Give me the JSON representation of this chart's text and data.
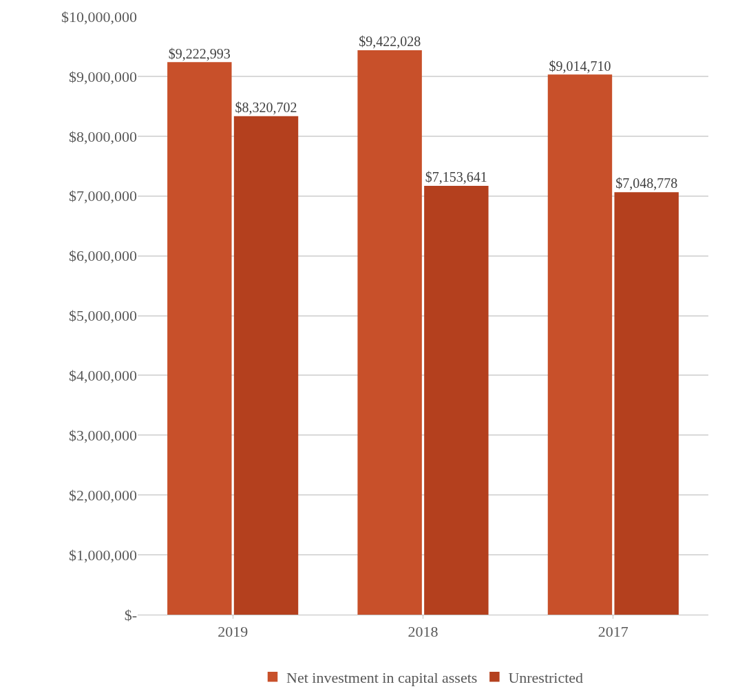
{
  "chart_data": {
    "type": "bar",
    "categories": [
      "2019",
      "2018",
      "2017"
    ],
    "series": [
      {
        "name": "Net investment in capital assets",
        "color": "#c8502a",
        "values": [
          9222993,
          9422028,
          9014710
        ],
        "value_labels": [
          "$9,222,993",
          "$9,422,028",
          "$9,014,710"
        ]
      },
      {
        "name": "Unrestricted",
        "color": "#b4401e",
        "values": [
          8320702,
          7153641,
          7048778
        ],
        "value_labels": [
          "$8,320,702",
          "$7,153,641",
          "$7,048,778"
        ]
      }
    ],
    "ylim": [
      0,
      10000000
    ],
    "yticks": [
      {
        "value": 0,
        "label": "$-"
      },
      {
        "value": 1000000,
        "label": "$1,000,000"
      },
      {
        "value": 2000000,
        "label": "$2,000,000"
      },
      {
        "value": 3000000,
        "label": "$3,000,000"
      },
      {
        "value": 4000000,
        "label": "$4,000,000"
      },
      {
        "value": 5000000,
        "label": "$5,000,000"
      },
      {
        "value": 6000000,
        "label": "$6,000,000"
      },
      {
        "value": 7000000,
        "label": "$7,000,000"
      },
      {
        "value": 8000000,
        "label": "$8,000,000"
      },
      {
        "value": 9000000,
        "label": "$9,000,000"
      },
      {
        "value": 10000000,
        "label": "$10,000,000"
      }
    ],
    "grid": "y",
    "legend": "bottom"
  }
}
